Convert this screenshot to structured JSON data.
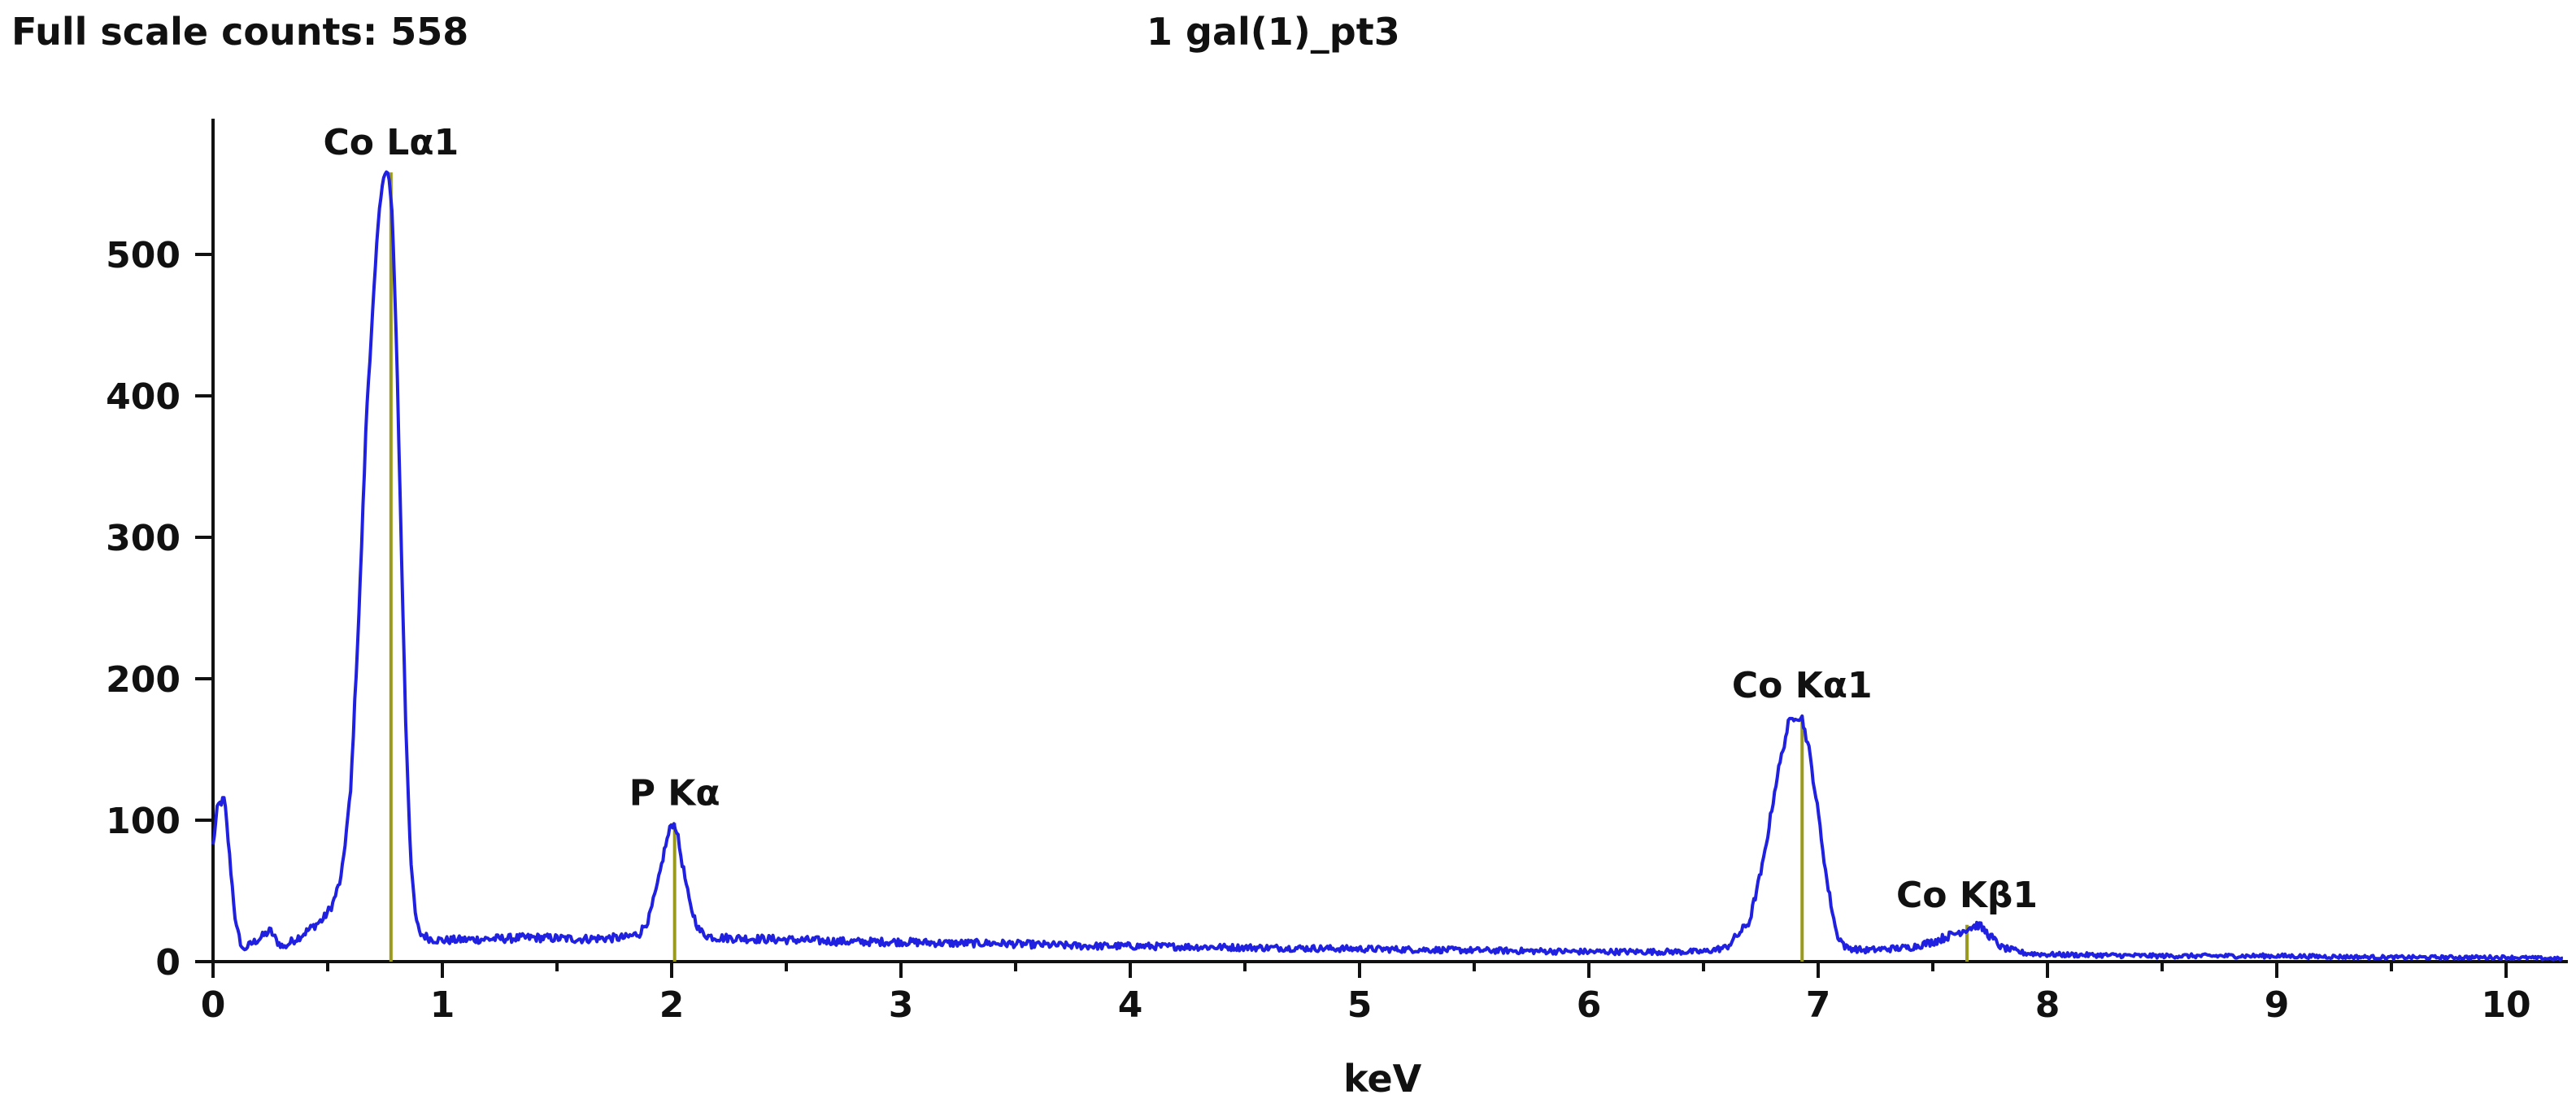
{
  "header": {
    "full_scale_label": "Full scale counts: 558",
    "sample_name": "1 gal(1)_pt3"
  },
  "chart_data": {
    "type": "line",
    "title": "1 gal(1)_pt3",
    "xlabel": "keV",
    "ylabel": "",
    "xlim": [
      0,
      10.25
    ],
    "ylim": [
      0,
      558
    ],
    "x_ticks": [
      0,
      1,
      2,
      3,
      4,
      5,
      6,
      7,
      8,
      9,
      10
    ],
    "y_ticks": [
      0,
      100,
      200,
      300,
      400,
      500
    ],
    "grid": false,
    "series_color": "#2020e0",
    "marker_color": "#9a9a1e",
    "spectrum": {
      "x": [
        0.0,
        0.02,
        0.05,
        0.08,
        0.1,
        0.13,
        0.16,
        0.2,
        0.25,
        0.28,
        0.31,
        0.34,
        0.38,
        0.43,
        0.48,
        0.52,
        0.56,
        0.6,
        0.64,
        0.67,
        0.7,
        0.72,
        0.74,
        0.76,
        0.77,
        0.78,
        0.8,
        0.82,
        0.84,
        0.86,
        0.88,
        0.9,
        0.95,
        1.0,
        1.2,
        1.4,
        1.6,
        1.8,
        1.86,
        1.9,
        1.94,
        1.97,
        2.0,
        2.02,
        2.04,
        2.08,
        2.12,
        2.16,
        2.2,
        2.4,
        2.6,
        2.8,
        3.0,
        3.2,
        3.4,
        3.6,
        3.8,
        4.0,
        4.5,
        5.0,
        5.5,
        6.0,
        6.5,
        6.6,
        6.7,
        6.76,
        6.82,
        6.87,
        6.9,
        6.93,
        6.96,
        7.0,
        7.04,
        7.08,
        7.12,
        7.2,
        7.4,
        7.5,
        7.6,
        7.66,
        7.7,
        7.75,
        7.8,
        7.9,
        8.0,
        8.5,
        9.0,
        9.5,
        10.0,
        10.25
      ],
      "y": [
        82,
        110,
        115,
        60,
        25,
        8,
        12,
        16,
        22,
        14,
        10,
        14,
        18,
        24,
        30,
        40,
        60,
        120,
        260,
        390,
        470,
        520,
        555,
        558,
        550,
        530,
        440,
        300,
        170,
        80,
        35,
        20,
        16,
        15,
        16,
        17,
        16,
        17,
        20,
        30,
        55,
        80,
        98,
        95,
        75,
        40,
        22,
        18,
        17,
        16,
        15,
        14,
        14,
        13,
        13,
        12,
        11,
        11,
        10,
        9,
        8,
        7,
        7,
        10,
        28,
        70,
        130,
        168,
        174,
        172,
        150,
        105,
        55,
        20,
        10,
        8,
        10,
        14,
        20,
        24,
        26,
        18,
        10,
        6,
        5,
        4,
        4,
        3,
        3,
        2
      ]
    },
    "peaks": [
      {
        "label": "Co Lα1",
        "x": 0.776,
        "counts": 558
      },
      {
        "label": "P Kα",
        "x": 2.013,
        "counts": 98
      },
      {
        "label": "Co Kα1",
        "x": 6.93,
        "counts": 174
      },
      {
        "label": "Co Kβ1",
        "x": 7.649,
        "counts": 26
      }
    ]
  }
}
